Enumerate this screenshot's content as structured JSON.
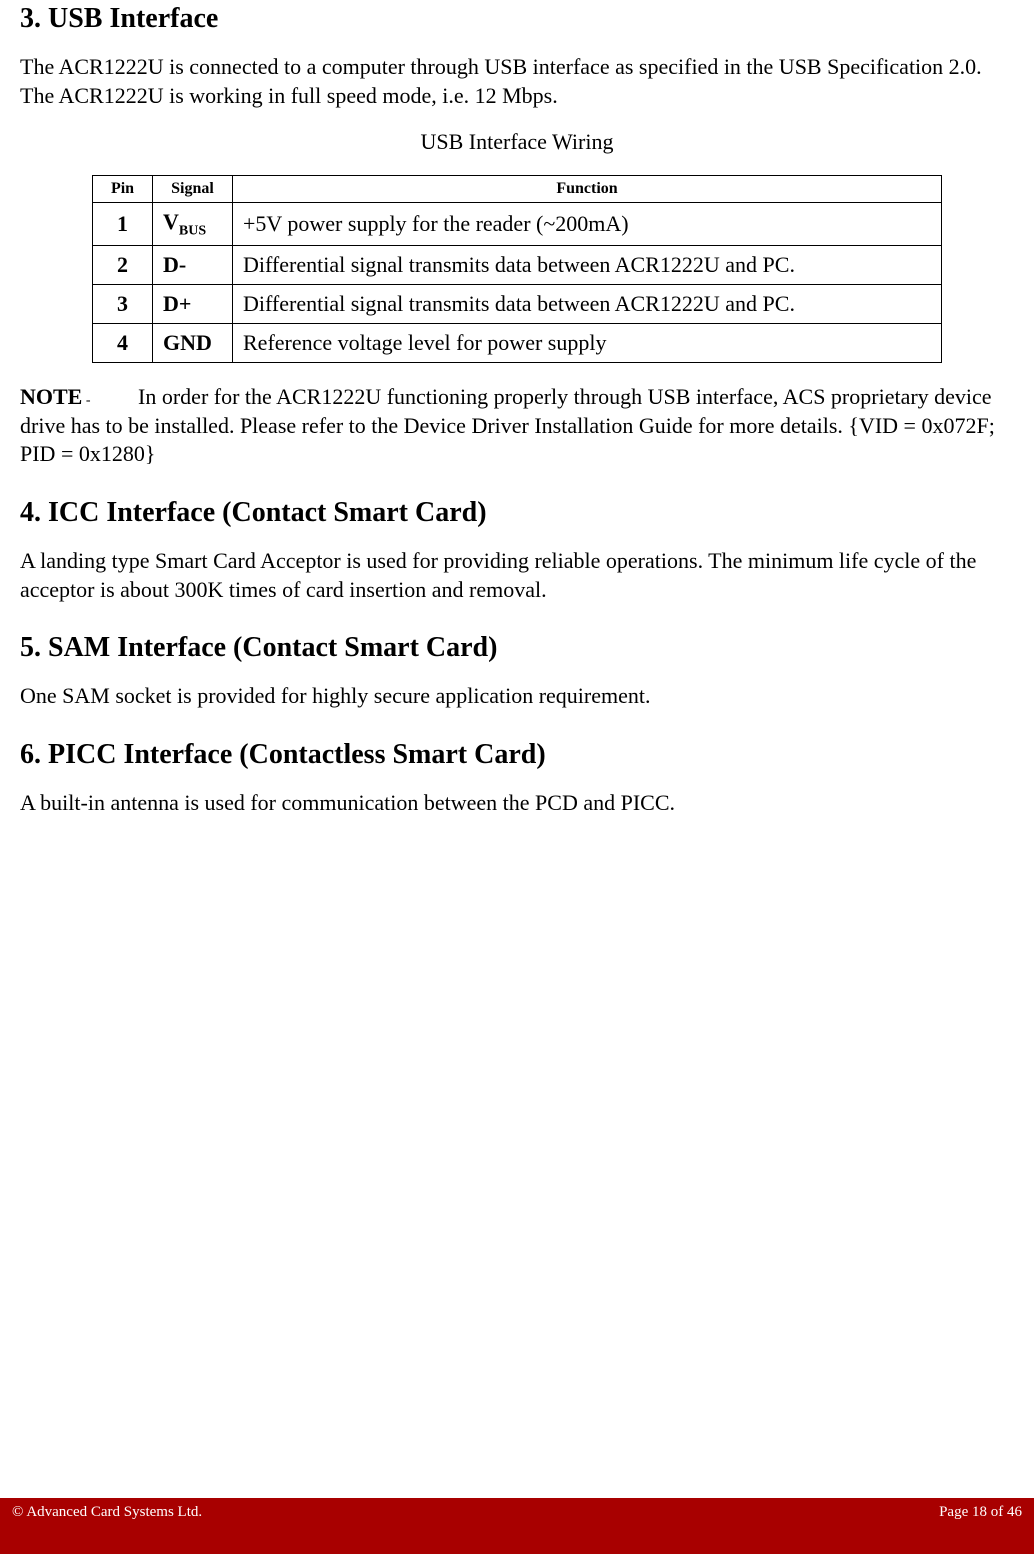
{
  "section3": {
    "heading": "3. USB Interface",
    "paragraph": "The ACR1222U is connected to a computer through USB interface as specified in the USB Specification 2.0.  The ACR1222U is working in full speed mode, i.e. 12 Mbps.",
    "table_caption": "USB Interface Wiring",
    "table": {
      "headers": [
        "Pin",
        "Signal",
        "Function"
      ],
      "rows": [
        {
          "pin": "1",
          "signal_main": "V",
          "signal_sub": "BUS",
          "function": "+5V power supply for the reader (~200mA)"
        },
        {
          "pin": "2",
          "signal_main": "D-",
          "signal_sub": "",
          "function": "Differential signal transmits data between ACR1222U and PC."
        },
        {
          "pin": "3",
          "signal_main": "D+",
          "signal_sub": "",
          "function": "Differential signal transmits data between ACR1222U and PC."
        },
        {
          "pin": "4",
          "signal_main": "GND",
          "signal_sub": "",
          "function": "Reference voltage level for power supply"
        }
      ]
    },
    "note_label": "NOTE",
    "note_dash": " - ",
    "note_text": "In order for the ACR1222U functioning properly through USB interface, ACS proprietary device drive has to be installed.  Please refer to the Device Driver Installation Guide for more details.  {VID = 0x072F; PID = 0x1280}"
  },
  "section4": {
    "heading": "4. ICC Interface (Contact Smart Card)",
    "paragraph": "A landing type Smart Card Acceptor is used for providing reliable operations. The minimum life cycle of the acceptor is about 300K times of card insertion and removal."
  },
  "section5": {
    "heading": "5. SAM Interface (Contact Smart Card)",
    "paragraph": "One SAM socket is provided for highly secure application requirement."
  },
  "section6": {
    "heading": "6. PICC Interface (Contactless Smart Card)",
    "paragraph": "A built-in antenna is used for communication between the PCD and PICC."
  },
  "footer": {
    "left": "© Advanced Card Systems Ltd.",
    "right": "Page 18 of 46"
  },
  "colors": {
    "footer_bg": "#a80000",
    "footer_text": "#ffffff",
    "body_bg": "#ffffff",
    "text": "#000000",
    "border": "#000000"
  }
}
